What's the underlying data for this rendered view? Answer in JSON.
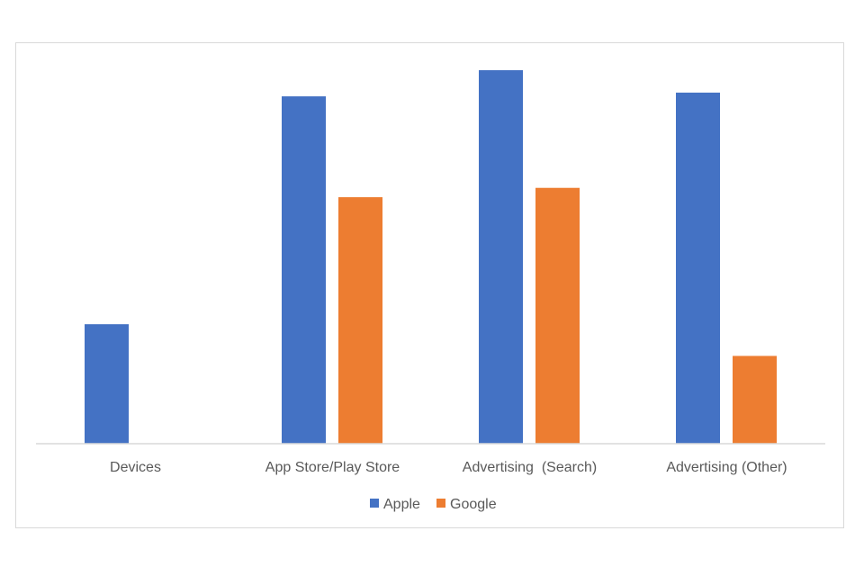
{
  "chart_data": {
    "type": "bar",
    "categories": [
      "Devices",
      "App Store/Play Store",
      "Advertising  (Search)",
      "Advertising (Other)"
    ],
    "series": [
      {
        "name": "Apple",
        "color": "#4472C4",
        "values": [
          32,
          93,
          100,
          94
        ]
      },
      {
        "name": "Google",
        "color": "#ED7D31",
        "values": [
          0,
          66,
          68.5,
          23.5
        ]
      }
    ],
    "ylim": [
      0,
      100
    ],
    "grid": false,
    "legend": "bottom",
    "title": "",
    "xlabel": "",
    "ylabel": ""
  }
}
